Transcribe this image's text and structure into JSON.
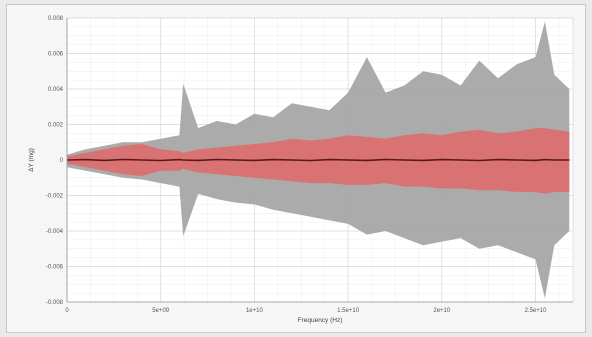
{
  "chart_data": {
    "type": "area",
    "xlabel": "Frequency (Hz)",
    "ylabel": "ΔY (mg)",
    "xlim": [
      0,
      27000000000
    ],
    "ylim": [
      -0.008,
      0.008
    ],
    "x_ticks": [
      {
        "value": 0,
        "label": "0"
      },
      {
        "value": 5000000000,
        "label": "5e+09"
      },
      {
        "value": 10000000000,
        "label": "1e+10"
      },
      {
        "value": 15000000000,
        "label": "1.5e+10"
      },
      {
        "value": 20000000000,
        "label": "2e+10"
      },
      {
        "value": 25000000000,
        "label": "2.5e+10"
      }
    ],
    "y_ticks": [
      {
        "value": 0.008,
        "label": "0.008"
      },
      {
        "value": 0.006,
        "label": "0.006"
      },
      {
        "value": 0.004,
        "label": "0.004"
      },
      {
        "value": 0.002,
        "label": "0.002"
      },
      {
        "value": 0,
        "label": "0"
      },
      {
        "value": -0.002,
        "label": "-0.002"
      },
      {
        "value": -0.004,
        "label": "-0.004"
      },
      {
        "value": -0.006,
        "label": "-0.006"
      },
      {
        "value": -0.008,
        "label": "-0.008"
      }
    ],
    "grid": true,
    "x": [
      0,
      1000000000,
      2000000000,
      3000000000,
      4000000000,
      5000000000,
      6000000000,
      6200000000,
      7000000000,
      8000000000,
      9000000000,
      10000000000,
      11000000000,
      12000000000,
      13000000000,
      14000000000,
      15000000000,
      16000000000,
      17000000000,
      18000000000,
      19000000000,
      20000000000,
      21000000000,
      22000000000,
      23000000000,
      24000000000,
      25000000000,
      25500000000,
      26000000000,
      26800000000
    ],
    "series": [
      {
        "color": "#a6a6a6",
        "upper": [
          0.0003,
          0.0006,
          0.0008,
          0.001,
          0.001,
          0.0012,
          0.0014,
          0.0043,
          0.0018,
          0.0022,
          0.002,
          0.0026,
          0.0024,
          0.0032,
          0.003,
          0.0028,
          0.0038,
          0.0058,
          0.0038,
          0.0042,
          0.005,
          0.0048,
          0.0042,
          0.0056,
          0.0046,
          0.0054,
          0.0058,
          0.0078,
          0.0048,
          0.004
        ],
        "lower": [
          -0.0004,
          -0.0006,
          -0.0008,
          -0.001,
          -0.0011,
          -0.0013,
          -0.0015,
          -0.0043,
          -0.0019,
          -0.0022,
          -0.0024,
          -0.0025,
          -0.0028,
          -0.003,
          -0.0032,
          -0.0034,
          -0.0036,
          -0.0042,
          -0.004,
          -0.0044,
          -0.0048,
          -0.0046,
          -0.0044,
          -0.005,
          -0.0048,
          -0.0052,
          -0.0056,
          -0.0078,
          -0.0048,
          -0.004
        ]
      },
      {
        "color": "#e06767",
        "upper": [
          0.0002,
          0.0004,
          0.0006,
          0.0008,
          0.0009,
          0.0006,
          0.0005,
          0.0004,
          0.0006,
          0.0007,
          0.0008,
          0.0009,
          0.001,
          0.0012,
          0.0011,
          0.0012,
          0.0014,
          0.0013,
          0.0012,
          0.0014,
          0.0015,
          0.0014,
          0.0016,
          0.0017,
          0.0015,
          0.0016,
          0.0018,
          0.0018,
          0.0017,
          0.0016
        ],
        "lower": [
          -0.0002,
          -0.0004,
          -0.0006,
          -0.0008,
          -0.0009,
          -0.0006,
          -0.0006,
          -0.0005,
          -0.0007,
          -0.0008,
          -0.0009,
          -0.001,
          -0.0011,
          -0.0012,
          -0.0013,
          -0.0013,
          -0.0014,
          -0.0014,
          -0.0013,
          -0.0015,
          -0.0015,
          -0.0016,
          -0.0016,
          -0.0017,
          -0.0017,
          -0.0018,
          -0.0018,
          -0.0019,
          -0.0018,
          -0.0018
        ]
      },
      {
        "color": "#5a1a1a",
        "values": [
          0,
          2e-05,
          -2e-05,
          3e-05,
          0,
          -3e-05,
          2e-05,
          0,
          -2e-05,
          3e-05,
          0,
          -2e-05,
          2e-05,
          0,
          -3e-05,
          2e-05,
          0,
          -2e-05,
          3e-05,
          0,
          -2e-05,
          2e-05,
          0,
          -3e-05,
          2e-05,
          0,
          -2e-05,
          2e-05,
          0,
          0
        ]
      }
    ]
  }
}
